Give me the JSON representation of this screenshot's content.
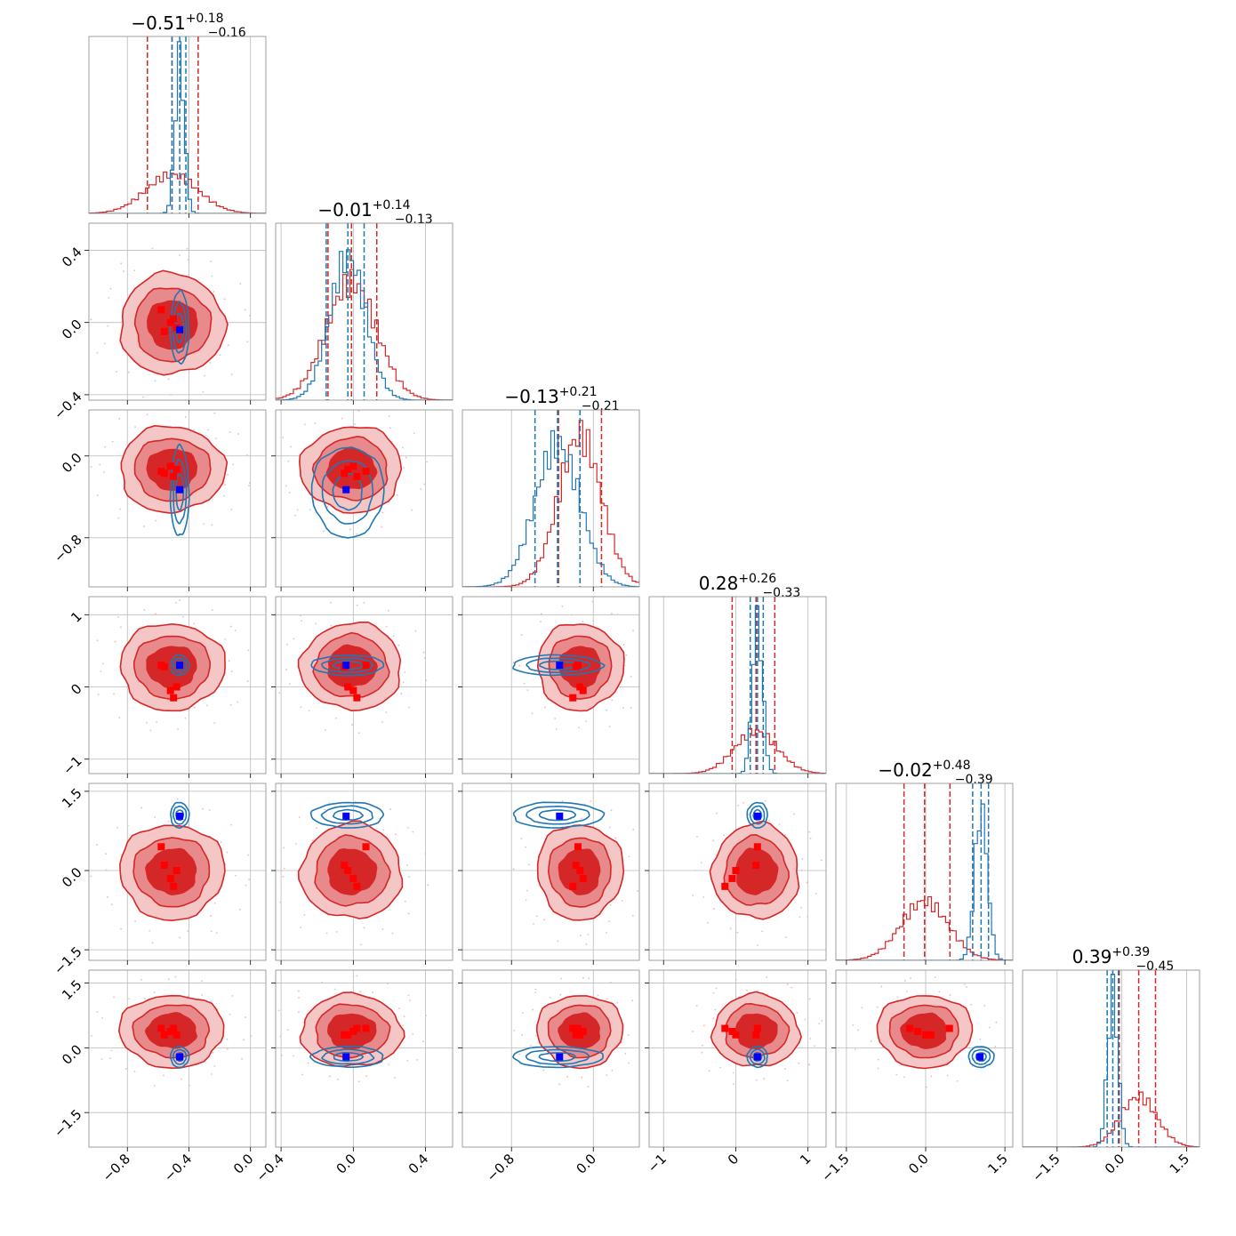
{
  "chart_data": {
    "type": "corner",
    "colors": {
      "red": "#d62728",
      "blue": "#1f77b4",
      "red_light": "#e88a8b",
      "red_lighter": "#f4c6c6",
      "marker_blue": "#0000ff",
      "marker_red": "#ff0000",
      "grid": "#bbbbbb"
    },
    "params": [
      {
        "range": [
          -1.05,
          0.1
        ],
        "ticks": [
          -0.8,
          -0.4,
          0.0
        ],
        "tick_labels": [
          "−0.8",
          "−0.4",
          "0.0"
        ],
        "title_main": "−0.51",
        "title_plus": "+0.18",
        "title_minus": "−0.16",
        "red_mean": -0.51,
        "red_sd": 0.17,
        "red_q": [
          -0.67,
          -0.34
        ],
        "blue_mean": -0.46,
        "blue_sd": 0.03,
        "blue_q": [
          -0.51,
          -0.42
        ],
        "hist_red_peak": 0.23,
        "hist_blue_peak": 0.92,
        "blue_map": -0.46,
        "red_points": [
          -0.58,
          -0.56,
          -0.52,
          -0.5,
          -0.48
        ]
      },
      {
        "range": [
          -0.43,
          0.55
        ],
        "ticks": [
          -0.4,
          0.0,
          0.4
        ],
        "tick_labels": [
          "−0.4",
          "0.0",
          "0.4"
        ],
        "title_main": "−0.01",
        "title_plus": "+0.14",
        "title_minus": "−0.13",
        "red_mean": -0.01,
        "red_sd": 0.14,
        "red_q": [
          -0.14,
          0.13
        ],
        "blue_mean": -0.03,
        "blue_sd": 0.1,
        "blue_q": [
          -0.15,
          0.06
        ],
        "hist_red_peak": 0.7,
        "hist_blue_peak": 0.85,
        "blue_map": -0.04,
        "red_points": [
          0.07,
          -0.05,
          0.0,
          0.02,
          -0.03
        ]
      },
      {
        "range": [
          -1.28,
          0.45
        ],
        "ticks": [
          -0.8,
          0.0
        ],
        "tick_labels": [
          "−0.8",
          "0.0"
        ],
        "title_main": "−0.13",
        "title_plus": "+0.21",
        "title_minus": "−0.21",
        "red_mean": -0.13,
        "red_sd": 0.21,
        "red_q": [
          -0.34,
          0.08
        ],
        "blue_mean": -0.35,
        "blue_sd": 0.22,
        "blue_q": [
          -0.57,
          -0.13
        ],
        "hist_red_peak": 0.9,
        "hist_blue_peak": 0.85,
        "blue_map": -0.33,
        "red_points": [
          -0.15,
          -0.17,
          -0.1,
          -0.2,
          -0.13
        ]
      },
      {
        "range": [
          -1.2,
          1.25
        ],
        "ticks": [
          -1,
          0,
          1
        ],
        "tick_labels": [
          "−1",
          "0",
          "1"
        ],
        "title_main": "0.28",
        "title_plus": "+0.26",
        "title_minus": "−0.33",
        "red_mean": 0.28,
        "red_sd": 0.3,
        "red_q": [
          -0.05,
          0.54
        ],
        "blue_mean": 0.3,
        "blue_sd": 0.07,
        "blue_q": [
          0.2,
          0.38
        ],
        "hist_red_peak": 0.25,
        "hist_blue_peak": 0.92,
        "blue_map": 0.3,
        "red_points": [
          0.3,
          0.28,
          -0.05,
          -0.15,
          0.0
        ]
      },
      {
        "range": [
          -1.7,
          1.65
        ],
        "ticks": [
          -1.5,
          0.0,
          1.5
        ],
        "tick_labels": [
          "−1.5",
          "0.0",
          "1.5"
        ],
        "title_main": "−0.02",
        "title_plus": "+0.48",
        "title_minus": "−0.39",
        "red_mean": -0.02,
        "red_sd": 0.45,
        "red_q": [
          -0.41,
          0.46
        ],
        "blue_mean": 1.05,
        "blue_sd": 0.12,
        "blue_q": [
          0.89,
          1.19
        ],
        "hist_red_peak": 0.35,
        "hist_blue_peak": 0.9,
        "blue_map": 1.03,
        "red_points": [
          0.45,
          0.1,
          -0.15,
          -0.3,
          0.0
        ]
      },
      {
        "range": [
          -2.3,
          1.8
        ],
        "ticks": [
          -1.5,
          0.0,
          1.5
        ],
        "tick_labels": [
          "−1.5",
          "0.0",
          "1.5"
        ],
        "title_main": "0.39",
        "title_plus": "+0.39",
        "title_minus": "−0.45",
        "red_mean": 0.39,
        "red_sd": 0.42,
        "red_q": [
          -0.06,
          0.78
        ],
        "blue_mean": -0.21,
        "blue_sd": 0.12,
        "blue_q": [
          -0.34,
          -0.08
        ],
        "hist_red_peak": 0.3,
        "hist_blue_peak": 0.92,
        "blue_map": -0.21,
        "red_points": [
          0.45,
          0.3,
          0.38,
          0.45,
          0.3
        ]
      }
    ]
  }
}
